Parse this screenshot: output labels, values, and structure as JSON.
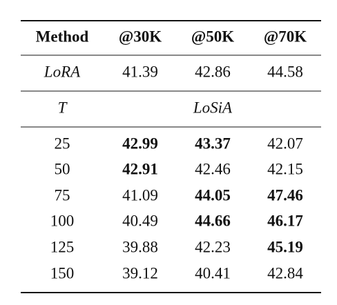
{
  "table": {
    "header": [
      "Method",
      "@30K",
      "@50K",
      "@70K"
    ],
    "baseline": {
      "method": "LoRA",
      "values": [
        "41.39",
        "42.86",
        "44.58"
      ]
    },
    "section": {
      "param": "T",
      "method": "LoSiA"
    },
    "rows": [
      {
        "t": "25",
        "values": [
          "42.99",
          "43.37",
          "42.07"
        ],
        "bold": [
          true,
          true,
          false
        ]
      },
      {
        "t": "50",
        "values": [
          "42.91",
          "42.46",
          "42.15"
        ],
        "bold": [
          true,
          false,
          false
        ]
      },
      {
        "t": "75",
        "values": [
          "41.09",
          "44.05",
          "47.46"
        ],
        "bold": [
          false,
          true,
          true
        ]
      },
      {
        "t": "100",
        "values": [
          "40.49",
          "44.66",
          "46.17"
        ],
        "bold": [
          false,
          true,
          true
        ]
      },
      {
        "t": "125",
        "values": [
          "39.88",
          "42.23",
          "45.19"
        ],
        "bold": [
          false,
          false,
          true
        ]
      },
      {
        "t": "150",
        "values": [
          "39.12",
          "40.41",
          "42.84"
        ],
        "bold": [
          false,
          false,
          false
        ]
      }
    ]
  }
}
